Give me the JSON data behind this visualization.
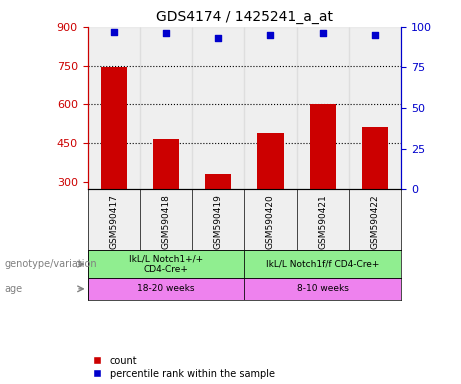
{
  "title": "GDS4174 / 1425241_a_at",
  "samples": [
    "GSM590417",
    "GSM590418",
    "GSM590419",
    "GSM590420",
    "GSM590421",
    "GSM590422"
  ],
  "bar_values": [
    745,
    465,
    330,
    490,
    600,
    510
  ],
  "percentile_values": [
    97,
    96,
    93,
    95,
    96,
    95
  ],
  "bar_color": "#cc0000",
  "dot_color": "#0000cc",
  "ylim_left": [
    270,
    900
  ],
  "yticks_left": [
    300,
    450,
    600,
    750,
    900
  ],
  "ylim_right": [
    0,
    100
  ],
  "yticks_right": [
    0,
    25,
    50,
    75,
    100
  ],
  "hlines": [
    750,
    600,
    450
  ],
  "genotype_groups": [
    {
      "label": "IkL/L Notch1+/+\nCD4-Cre+",
      "start": 0,
      "end": 3,
      "color": "#90ee90"
    },
    {
      "label": "IkL/L Notch1f/f CD4-Cre+",
      "start": 3,
      "end": 6,
      "color": "#90ee90"
    }
  ],
  "age_groups": [
    {
      "label": "18-20 weeks",
      "start": 0,
      "end": 3,
      "color": "#ee82ee"
    },
    {
      "label": "8-10 weeks",
      "start": 3,
      "end": 6,
      "color": "#ee82ee"
    }
  ],
  "genotype_label": "genotype/variation",
  "age_label": "age",
  "legend_count": "count",
  "legend_percentile": "percentile rank within the sample",
  "bar_width": 0.5,
  "sample_bg_color": "#d3d3d3",
  "left_axis_color": "#cc0000",
  "right_axis_color": "#0000cc"
}
